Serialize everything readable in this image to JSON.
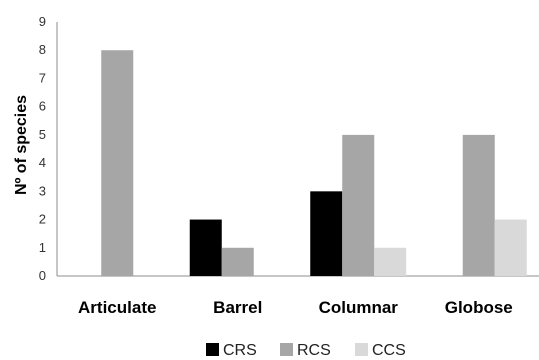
{
  "chart_data": {
    "type": "bar",
    "categories": [
      "Articulate",
      "Barrel",
      "Columnar",
      "Globose"
    ],
    "series": [
      {
        "name": "CRS",
        "values": [
          0,
          2,
          3,
          0
        ],
        "color": "#000000"
      },
      {
        "name": "RCS",
        "values": [
          8,
          1,
          5,
          5
        ],
        "color": "#a6a6a6"
      },
      {
        "name": "CCS",
        "values": [
          0,
          0,
          1,
          2
        ],
        "color": "#d9d9d9"
      }
    ],
    "ylabel": "Nº of species",
    "ylim": [
      0,
      9
    ],
    "yticks": [
      0,
      1,
      2,
      3,
      4,
      5,
      6,
      7,
      8,
      9
    ],
    "grid": false,
    "legend_position": "bottom"
  }
}
